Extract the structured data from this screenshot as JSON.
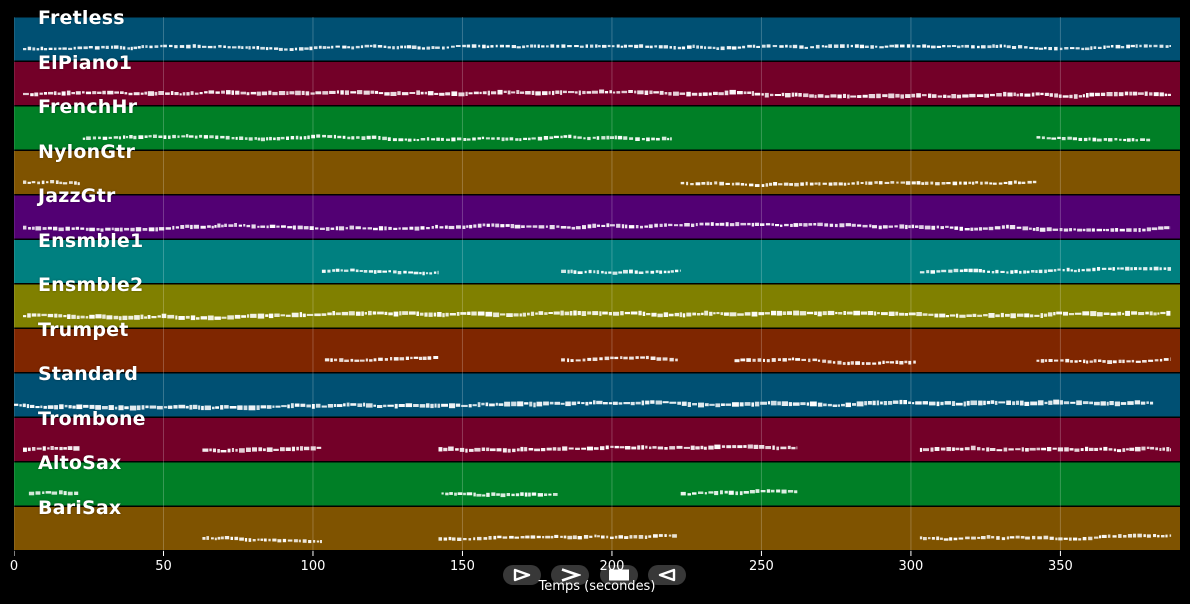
{
  "chart_data": {
    "type": "piano-roll",
    "title": "",
    "xlabel": "Temps (secondes)",
    "ylabel": "",
    "xlim": [
      0,
      390
    ],
    "x_ticks": [
      0,
      50,
      100,
      150,
      200,
      250,
      300,
      350
    ],
    "x_tick_labels": [
      "0",
      "50",
      "100",
      "150",
      "200",
      "250",
      "300",
      "350"
    ],
    "grid": true,
    "tracks": [
      {
        "name": "Fretless",
        "color": "#005073",
        "segments": [
          [
            3,
            387
          ]
        ],
        "density": 0.55
      },
      {
        "name": "ElPiano1",
        "color": "#730028",
        "segments": [
          [
            3,
            387
          ]
        ],
        "density": 0.9
      },
      {
        "name": "FrenchHr",
        "color": "#007f26",
        "segments": [
          [
            23,
            220
          ],
          [
            342,
            380
          ]
        ],
        "density": 0.6
      },
      {
        "name": "NylonGtr",
        "color": "#7f5300",
        "segments": [
          [
            3,
            22
          ],
          [
            223,
            342
          ]
        ],
        "density": 0.55
      },
      {
        "name": "JazzGtr",
        "color": "#520073",
        "segments": [
          [
            3,
            387
          ]
        ],
        "density": 0.75
      },
      {
        "name": "Ensmble1",
        "color": "#008080",
        "segments": [
          [
            103,
            142
          ],
          [
            183,
            223
          ],
          [
            303,
            387
          ]
        ],
        "density": 0.6
      },
      {
        "name": "Ensmble2",
        "color": "#808000",
        "segments": [
          [
            3,
            387
          ]
        ],
        "density": 1.0
      },
      {
        "name": "Trumpet",
        "color": "#7f2600",
        "segments": [
          [
            104,
            142
          ],
          [
            183,
            222
          ],
          [
            241,
            302
          ],
          [
            342,
            387
          ]
        ],
        "density": 0.6
      },
      {
        "name": "Standard",
        "color": "#005073",
        "segments": [
          [
            0,
            381
          ]
        ],
        "density": 1.0
      },
      {
        "name": "Trombone",
        "color": "#730028",
        "segments": [
          [
            3,
            22
          ],
          [
            63,
            103
          ],
          [
            142,
            262
          ],
          [
            303,
            387
          ]
        ],
        "density": 0.85
      },
      {
        "name": "AltoSax",
        "color": "#007f26",
        "segments": [
          [
            5,
            22
          ],
          [
            143,
            182
          ],
          [
            223,
            262
          ]
        ],
        "density": 0.7
      },
      {
        "name": "BariSax",
        "color": "#7f5300",
        "segments": [
          [
            63,
            103
          ],
          [
            142,
            222
          ],
          [
            303,
            387
          ]
        ],
        "density": 0.6
      }
    ]
  },
  "controls": {
    "play_icon": "play-icon",
    "next_icon": "next-icon",
    "stop_icon": "stop-icon",
    "back_icon": "back-icon"
  }
}
